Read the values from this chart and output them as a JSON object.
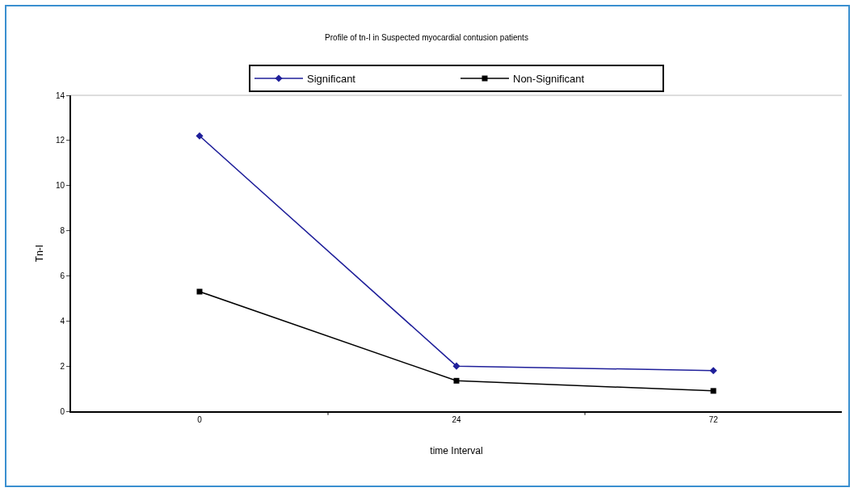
{
  "chart_data": {
    "type": "line",
    "title": "Profile of tn-I in Suspected myocardial contusion patients",
    "xlabel": "time Interval",
    "ylabel": "Tn-I",
    "categories": [
      "0",
      "24",
      "72"
    ],
    "series": [
      {
        "name": "Significant",
        "color": "#1f1f9a",
        "marker": "diamond",
        "values": [
          12.2,
          2.0,
          1.8
        ]
      },
      {
        "name": "Non-Significant",
        "color": "#000000",
        "marker": "square",
        "values": [
          5.3,
          1.35,
          0.9
        ]
      }
    ],
    "ylim": [
      0,
      14
    ],
    "yticks": [
      0,
      2,
      4,
      6,
      8,
      10,
      12,
      14
    ],
    "grid": false,
    "legend": "top",
    "line_style": "solid"
  }
}
